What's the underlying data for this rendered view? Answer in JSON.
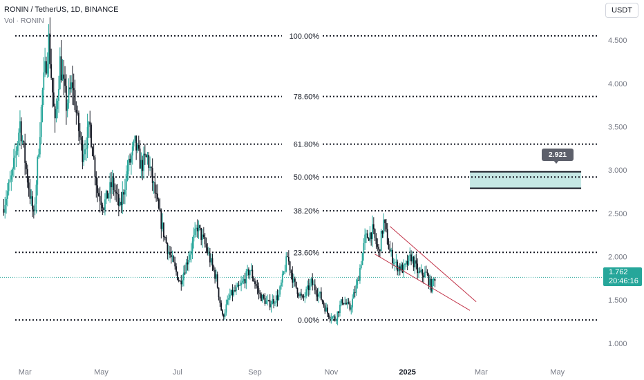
{
  "header": {
    "title": "RONIN / TetherUS, 1D, BINANCE",
    "subtitle": "Vol · RONIN"
  },
  "currency_button": "USDT",
  "last_price": {
    "value": "1.762",
    "countdown": "20:46:16"
  },
  "callout_label": "2.921",
  "colors": {
    "up": "#26a69a",
    "down": "#131722",
    "fib_line": "#131722",
    "wedge_line": "#c2354a",
    "zone_fill": "#b2dfdb",
    "last_price_line": "#26a69a"
  },
  "chart_data": {
    "type": "candlestick",
    "y_axis": {
      "ticks": [
        "4.500",
        "4.000",
        "3.500",
        "3.000",
        "2.500",
        "2.000",
        "1.500",
        "1.000"
      ],
      "tick_values": [
        4.5,
        4.0,
        3.5,
        3.0,
        2.5,
        2.0,
        1.5,
        1.0
      ],
      "ylim": [
        0.8,
        4.82
      ]
    },
    "x_axis": {
      "labels": [
        "Mar",
        "May",
        "Jul",
        "Sep",
        "Nov",
        "2025",
        "Mar",
        "May"
      ],
      "label_dates": [
        "2024-03-01",
        "2024-05-01",
        "2024-07-01",
        "2024-09-01",
        "2024-11-01",
        "2025-01-01",
        "2025-03-01",
        "2025-05-01"
      ],
      "range": [
        "2024-02-10",
        "2025-06-05"
      ]
    },
    "fib_levels": [
      {
        "label": "100.00%",
        "price": 4.55
      },
      {
        "label": "78.60%",
        "price": 3.85
      },
      {
        "label": "61.80%",
        "price": 3.3
      },
      {
        "label": "50.00%",
        "price": 2.92
      },
      {
        "label": "38.20%",
        "price": 2.53
      },
      {
        "label": "23.60%",
        "price": 2.05
      },
      {
        "label": "0.00%",
        "price": 1.27
      }
    ],
    "zone": {
      "from": "2025-02-20",
      "to": "2025-05-20",
      "low": 2.79,
      "high": 2.98
    },
    "wedge_lines": [
      {
        "from": [
          "2024-12-18",
          2.35
        ],
        "to": [
          "2025-02-25",
          1.48
        ]
      },
      {
        "from": [
          "2024-12-06",
          2.03
        ],
        "to": [
          "2025-02-20",
          1.38
        ]
      }
    ],
    "last_price": 1.762,
    "path": [
      [
        "2024-02-12",
        2.55
      ],
      [
        "2024-02-20",
        2.95
      ],
      [
        "2024-02-26",
        3.55
      ],
      [
        "2024-03-03",
        2.9
      ],
      [
        "2024-03-08",
        2.45
      ],
      [
        "2024-03-15",
        3.9
      ],
      [
        "2024-03-20",
        4.5
      ],
      [
        "2024-03-25",
        3.5
      ],
      [
        "2024-03-29",
        4.25
      ],
      [
        "2024-04-03",
        3.75
      ],
      [
        "2024-04-08",
        4.0
      ],
      [
        "2024-04-12",
        3.55
      ],
      [
        "2024-04-16",
        3.2
      ],
      [
        "2024-04-22",
        3.5
      ],
      [
        "2024-04-28",
        2.75
      ],
      [
        "2024-05-03",
        2.6
      ],
      [
        "2024-05-10",
        2.85
      ],
      [
        "2024-05-16",
        2.55
      ],
      [
        "2024-05-22",
        3.0
      ],
      [
        "2024-05-28",
        3.3
      ],
      [
        "2024-06-02",
        3.05
      ],
      [
        "2024-06-07",
        3.15
      ],
      [
        "2024-06-12",
        2.8
      ],
      [
        "2024-06-17",
        2.45
      ],
      [
        "2024-06-23",
        2.1
      ],
      [
        "2024-06-28",
        1.9
      ],
      [
        "2024-07-03",
        1.7
      ],
      [
        "2024-07-10",
        2.0
      ],
      [
        "2024-07-17",
        2.35
      ],
      [
        "2024-07-24",
        2.1
      ],
      [
        "2024-08-01",
        1.75
      ],
      [
        "2024-08-06",
        1.3
      ],
      [
        "2024-08-12",
        1.55
      ],
      [
        "2024-08-20",
        1.65
      ],
      [
        "2024-08-28",
        1.85
      ],
      [
        "2024-09-05",
        1.55
      ],
      [
        "2024-09-12",
        1.45
      ],
      [
        "2024-09-20",
        1.55
      ],
      [
        "2024-09-27",
        2.0
      ],
      [
        "2024-10-02",
        1.7
      ],
      [
        "2024-10-09",
        1.5
      ],
      [
        "2024-10-16",
        1.7
      ],
      [
        "2024-10-23",
        1.55
      ],
      [
        "2024-10-29",
        1.35
      ],
      [
        "2024-11-04",
        1.28
      ],
      [
        "2024-11-10",
        1.5
      ],
      [
        "2024-11-16",
        1.4
      ],
      [
        "2024-11-22",
        1.7
      ],
      [
        "2024-11-28",
        2.2
      ],
      [
        "2024-12-04",
        2.3
      ],
      [
        "2024-12-09",
        2.05
      ],
      [
        "2024-12-13",
        2.4
      ],
      [
        "2024-12-18",
        2.05
      ],
      [
        "2024-12-23",
        1.9
      ],
      [
        "2024-12-29",
        1.85
      ],
      [
        "2025-01-04",
        2.0
      ],
      [
        "2025-01-10",
        1.8
      ],
      [
        "2025-01-16",
        1.8
      ],
      [
        "2025-01-20",
        1.65
      ],
      [
        "2025-01-23",
        1.762
      ]
    ]
  }
}
